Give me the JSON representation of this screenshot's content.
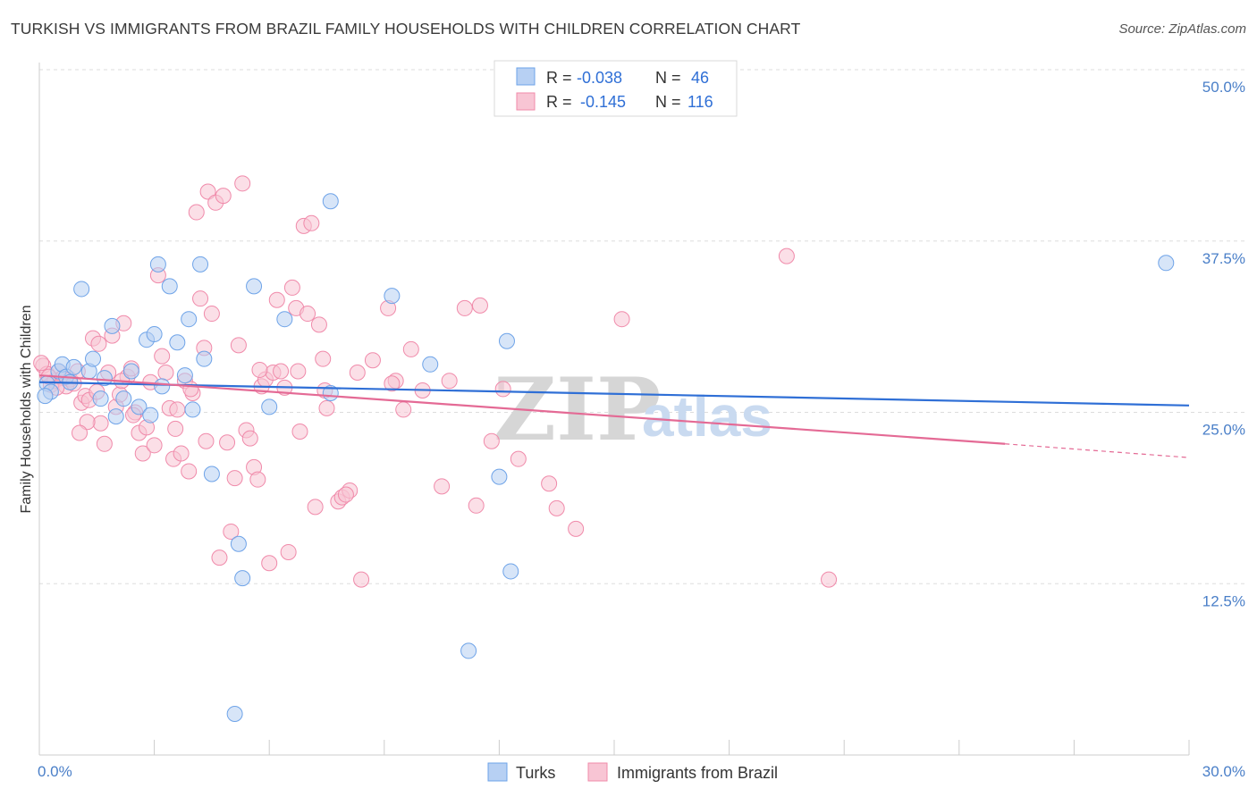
{
  "title": "TURKISH VS IMMIGRANTS FROM BRAZIL FAMILY HOUSEHOLDS WITH CHILDREN CORRELATION CHART",
  "source": "Source: ZipAtlas.com",
  "watermark": {
    "zip": "ZIP",
    "atlas": "atlas"
  },
  "chart_data": {
    "type": "scatter",
    "title": "TURKISH VS IMMIGRANTS FROM BRAZIL FAMILY HOUSEHOLDS WITH CHILDREN CORRELATION CHART",
    "xlabel": "",
    "ylabel": "Family Households with Children",
    "xlim": [
      0,
      30
    ],
    "ylim": [
      0,
      52
    ],
    "x_tick_labels": [
      "0.0%",
      "30.0%"
    ],
    "y_ticks": [
      12.5,
      25.0,
      37.5,
      50.0
    ],
    "y_tick_labels": [
      "12.5%",
      "25.0%",
      "37.5%",
      "50.0%"
    ],
    "grid": "horizontal dashed",
    "legend_position": "top-center",
    "series": [
      {
        "name": "Turks",
        "color": "#6ea3e8",
        "fill": "#b7d0f3",
        "r": "-0.038",
        "n": "46",
        "trend": {
          "x0": 0,
          "y0": 27.2,
          "x1": 30,
          "y1": 25.5
        },
        "points": [
          [
            0.2,
            27.1
          ],
          [
            0.3,
            26.5
          ],
          [
            0.5,
            28.0
          ],
          [
            0.6,
            28.5
          ],
          [
            0.7,
            27.6
          ],
          [
            0.8,
            27.2
          ],
          [
            0.9,
            28.3
          ],
          [
            1.1,
            34.0
          ],
          [
            1.3,
            28.0
          ],
          [
            1.4,
            28.9
          ],
          [
            1.6,
            26.0
          ],
          [
            1.7,
            27.5
          ],
          [
            1.9,
            31.3
          ],
          [
            2.0,
            24.7
          ],
          [
            2.2,
            26.0
          ],
          [
            2.4,
            28.0
          ],
          [
            2.6,
            25.4
          ],
          [
            2.8,
            30.3
          ],
          [
            2.9,
            24.8
          ],
          [
            3.0,
            30.7
          ],
          [
            3.1,
            35.8
          ],
          [
            3.2,
            26.9
          ],
          [
            3.4,
            34.2
          ],
          [
            3.6,
            30.1
          ],
          [
            3.8,
            27.7
          ],
          [
            3.9,
            31.8
          ],
          [
            4.0,
            25.2
          ],
          [
            4.2,
            35.8
          ],
          [
            4.3,
            28.9
          ],
          [
            4.5,
            20.5
          ],
          [
            5.1,
            3.0
          ],
          [
            5.2,
            15.4
          ],
          [
            5.3,
            12.9
          ],
          [
            5.6,
            34.2
          ],
          [
            6.0,
            25.4
          ],
          [
            6.4,
            31.8
          ],
          [
            7.6,
            40.4
          ],
          [
            7.6,
            26.4
          ],
          [
            9.2,
            33.5
          ],
          [
            10.2,
            28.5
          ],
          [
            11.2,
            7.6
          ],
          [
            12.0,
            20.3
          ],
          [
            12.2,
            30.2
          ],
          [
            12.3,
            13.4
          ],
          [
            29.4,
            35.9
          ],
          [
            0.15,
            26.2
          ]
        ]
      },
      {
        "name": "Immigrants from Brazil",
        "color": "#f08aaa",
        "fill": "#f8c5d4",
        "r": "-0.145",
        "n": "116",
        "trend": {
          "x0": 0,
          "y0": 27.7,
          "x1": 25.2,
          "y1": 22.7
        },
        "trend_ext": {
          "x0": 25.2,
          "y0": 22.7,
          "x1": 30,
          "y1": 21.7
        },
        "points": [
          [
            0.1,
            28.4
          ],
          [
            0.2,
            27.8
          ],
          [
            0.3,
            27.0
          ],
          [
            0.4,
            27.3
          ],
          [
            0.5,
            28.0
          ],
          [
            0.6,
            27.5
          ],
          [
            0.7,
            26.9
          ],
          [
            0.8,
            27.4
          ],
          [
            0.9,
            27.1
          ],
          [
            1.0,
            28.0
          ],
          [
            1.1,
            25.7
          ],
          [
            1.2,
            26.2
          ],
          [
            1.3,
            25.9
          ],
          [
            1.4,
            30.4
          ],
          [
            1.5,
            26.5
          ],
          [
            1.6,
            24.2
          ],
          [
            1.7,
            22.7
          ],
          [
            1.8,
            27.9
          ],
          [
            1.9,
            30.6
          ],
          [
            2.0,
            25.4
          ],
          [
            2.1,
            26.3
          ],
          [
            2.2,
            31.5
          ],
          [
            2.3,
            27.6
          ],
          [
            2.4,
            28.2
          ],
          [
            2.5,
            25.0
          ],
          [
            2.6,
            23.5
          ],
          [
            2.7,
            22.0
          ],
          [
            2.8,
            23.9
          ],
          [
            2.9,
            27.2
          ],
          [
            3.0,
            22.6
          ],
          [
            3.1,
            35.0
          ],
          [
            3.2,
            29.1
          ],
          [
            3.3,
            27.9
          ],
          [
            3.4,
            25.3
          ],
          [
            3.5,
            21.6
          ],
          [
            3.6,
            25.2
          ],
          [
            3.7,
            22.0
          ],
          [
            3.8,
            27.3
          ],
          [
            3.9,
            20.7
          ],
          [
            4.0,
            26.4
          ],
          [
            4.1,
            39.6
          ],
          [
            4.2,
            33.3
          ],
          [
            4.3,
            29.7
          ],
          [
            4.4,
            41.1
          ],
          [
            4.5,
            32.2
          ],
          [
            4.6,
            40.3
          ],
          [
            4.7,
            14.4
          ],
          [
            4.8,
            40.8
          ],
          [
            4.9,
            22.8
          ],
          [
            5.0,
            16.3
          ],
          [
            5.1,
            20.2
          ],
          [
            5.2,
            29.9
          ],
          [
            5.3,
            41.7
          ],
          [
            5.4,
            23.7
          ],
          [
            5.5,
            23.1
          ],
          [
            5.6,
            21.0
          ],
          [
            5.7,
            20.1
          ],
          [
            5.8,
            26.9
          ],
          [
            5.9,
            27.4
          ],
          [
            6.0,
            14.0
          ],
          [
            6.1,
            27.9
          ],
          [
            6.2,
            33.2
          ],
          [
            6.3,
            28.0
          ],
          [
            6.4,
            26.8
          ],
          [
            6.5,
            14.8
          ],
          [
            6.6,
            34.1
          ],
          [
            6.7,
            32.6
          ],
          [
            6.8,
            23.6
          ],
          [
            6.9,
            38.6
          ],
          [
            7.0,
            32.2
          ],
          [
            7.1,
            38.8
          ],
          [
            7.2,
            18.1
          ],
          [
            7.3,
            31.4
          ],
          [
            7.4,
            28.9
          ],
          [
            7.5,
            25.3
          ],
          [
            7.8,
            18.5
          ],
          [
            7.9,
            18.8
          ],
          [
            8.1,
            19.3
          ],
          [
            8.3,
            27.9
          ],
          [
            8.4,
            12.8
          ],
          [
            8.7,
            28.8
          ],
          [
            9.1,
            32.6
          ],
          [
            9.3,
            27.3
          ],
          [
            9.5,
            25.2
          ],
          [
            9.7,
            29.6
          ],
          [
            10.0,
            26.6
          ],
          [
            10.5,
            19.6
          ],
          [
            10.7,
            27.3
          ],
          [
            11.1,
            32.6
          ],
          [
            11.4,
            18.2
          ],
          [
            11.5,
            32.8
          ],
          [
            11.8,
            22.9
          ],
          [
            12.1,
            26.7
          ],
          [
            12.5,
            21.6
          ],
          [
            13.3,
            19.8
          ],
          [
            13.5,
            18.0
          ],
          [
            14.0,
            16.5
          ],
          [
            15.2,
            31.8
          ],
          [
            19.5,
            36.4
          ],
          [
            20.6,
            12.8
          ],
          [
            0.05,
            28.6
          ],
          [
            0.25,
            27.6
          ],
          [
            0.45,
            26.8
          ],
          [
            1.25,
            24.3
          ],
          [
            1.55,
            30.0
          ],
          [
            2.15,
            27.3
          ],
          [
            3.55,
            23.8
          ],
          [
            4.35,
            22.9
          ],
          [
            5.75,
            28.1
          ],
          [
            6.75,
            28.0
          ],
          [
            7.45,
            26.6
          ],
          [
            8.0,
            19.0
          ],
          [
            9.2,
            27.1
          ],
          [
            2.45,
            24.8
          ],
          [
            3.95,
            26.7
          ],
          [
            1.05,
            23.5
          ]
        ]
      }
    ]
  },
  "legend": {
    "r_label": "R =",
    "n_label": "N =",
    "turks_r": "-0.038",
    "turks_n": "46",
    "brazil_r": "-0.145",
    "brazil_n": "116"
  },
  "bottom_legend": {
    "turks": "Turks",
    "brazil": "Immigrants from Brazil"
  }
}
